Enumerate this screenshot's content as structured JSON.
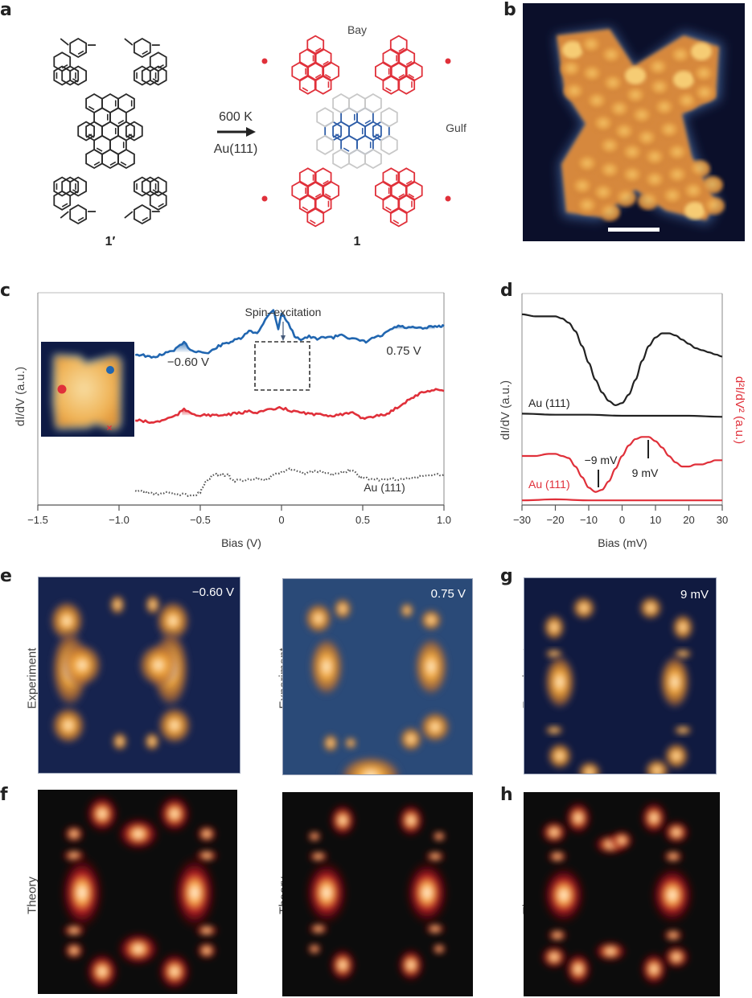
{
  "panel_labels": {
    "a": "a",
    "b": "b",
    "c": "c",
    "d": "d",
    "e": "e",
    "f": "f",
    "g": "g",
    "h": "h"
  },
  "panel_a": {
    "reaction_condition_top": "600 K",
    "reaction_condition_bottom": "Au(111)",
    "precursor_label": "1′",
    "product_label": "1",
    "bay_label": "Bay",
    "gulf_label": "Gulf",
    "colors": {
      "precursor": "#2a2a2a",
      "product_outer": "#e0303a",
      "product_core": "#2f5ea8",
      "bond_new": "#c8c8c8"
    }
  },
  "panel_b": {
    "image": "stm-topography",
    "scale_bar": "scale-bar"
  },
  "panel_e": {
    "row_label": "Experiment",
    "left_bias": "−0.60 V",
    "right_bias": "0.75 V"
  },
  "panel_f": {
    "row_label": "Theory"
  },
  "panel_g": {
    "row_label": "Experiment",
    "bias": "9 mV"
  },
  "panel_h": {
    "row_label": "Theory"
  },
  "chart_data": [
    {
      "type": "line",
      "panel": "c",
      "xlabel": "Bias (V)",
      "ylabel": "dI/dV (a.u.)",
      "xlim": [
        -1.5,
        1.0
      ],
      "xticks": [
        "−1.5",
        "−1.0",
        "−0.5",
        "0",
        "0.5",
        "1.0"
      ],
      "xtick_values": [
        -1.5,
        -1.0,
        -0.5,
        0,
        0.5,
        1.0
      ],
      "annotations": {
        "spin": "Spin–excitation",
        "peak_neg": "−0.60 V",
        "peak_pos": "0.75 V",
        "au": "Au (111)"
      },
      "series": [
        {
          "name": "blue-site",
          "color": "#2166b0",
          "x": [
            -0.9,
            -0.85,
            -0.8,
            -0.75,
            -0.7,
            -0.65,
            -0.6,
            -0.55,
            -0.5,
            -0.45,
            -0.4,
            -0.35,
            -0.3,
            -0.25,
            -0.2,
            -0.15,
            -0.1,
            -0.05,
            -0.02,
            0,
            0.03,
            0.08,
            0.12,
            0.17,
            0.22,
            0.27,
            0.32,
            0.37,
            0.42,
            0.47,
            0.52,
            0.57,
            0.62,
            0.67,
            0.72,
            0.77,
            0.82,
            0.87,
            0.92,
            0.97,
            1.0
          ],
          "y": [
            0.54,
            0.53,
            0.5,
            0.53,
            0.56,
            0.6,
            0.67,
            0.58,
            0.57,
            0.55,
            0.62,
            0.66,
            0.69,
            0.72,
            0.8,
            0.78,
            0.93,
            1.05,
            0.83,
            1.0,
            0.93,
            0.75,
            0.71,
            0.74,
            0.71,
            0.74,
            0.73,
            0.77,
            0.72,
            0.7,
            0.68,
            0.73,
            0.75,
            0.82,
            0.86,
            0.84,
            0.84,
            0.83,
            0.85,
            0.86,
            0.86
          ]
        },
        {
          "name": "red-site",
          "color": "#e0303a",
          "x": [
            -0.9,
            -0.85,
            -0.8,
            -0.75,
            -0.7,
            -0.65,
            -0.6,
            -0.55,
            -0.5,
            -0.45,
            -0.4,
            -0.35,
            -0.3,
            -0.25,
            -0.2,
            -0.15,
            -0.1,
            -0.05,
            0,
            0.05,
            0.1,
            0.15,
            0.2,
            0.25,
            0.3,
            0.35,
            0.4,
            0.45,
            0.5,
            0.55,
            0.6,
            0.65,
            0.7,
            0.75,
            0.8,
            0.85,
            0.9,
            0.95,
            1.0
          ],
          "y": [
            0.25,
            0.24,
            0.22,
            0.24,
            0.27,
            0.3,
            0.37,
            0.33,
            0.3,
            0.31,
            0.3,
            0.31,
            0.32,
            0.33,
            0.35,
            0.34,
            0.36,
            0.37,
            0.39,
            0.36,
            0.34,
            0.33,
            0.31,
            0.32,
            0.3,
            0.31,
            0.32,
            0.33,
            0.27,
            0.29,
            0.3,
            0.32,
            0.38,
            0.44,
            0.5,
            0.55,
            0.58,
            0.6,
            0.58
          ]
        },
        {
          "name": "Au (111)",
          "color": "#555555",
          "dotted": true,
          "x": [
            -0.9,
            -0.85,
            -0.8,
            -0.75,
            -0.7,
            -0.65,
            -0.6,
            -0.55,
            -0.5,
            -0.47,
            -0.43,
            -0.4,
            -0.37,
            -0.33,
            -0.3,
            -0.25,
            -0.2,
            -0.15,
            -0.1,
            -0.05,
            0,
            0.05,
            0.1,
            0.15,
            0.2,
            0.25,
            0.3,
            0.35,
            0.4,
            0.43,
            0.47,
            0.5,
            0.55,
            0.6,
            0.65,
            0.7,
            0.75,
            0.8,
            0.85,
            0.9,
            0.95,
            1.0
          ],
          "y": [
            -0.02,
            -0.03,
            -0.05,
            -0.06,
            -0.04,
            -0.06,
            -0.06,
            -0.08,
            -0.04,
            0.07,
            0.14,
            0.17,
            0.15,
            0.17,
            0.09,
            0.1,
            0.11,
            0.12,
            0.1,
            0.15,
            0.19,
            0.22,
            0.2,
            0.17,
            0.2,
            0.19,
            0.16,
            0.18,
            0.2,
            0.22,
            0.15,
            0.12,
            0.12,
            0.1,
            0.11,
            0.11,
            0.11,
            0.12,
            0.14,
            0.15,
            0.16,
            0.16
          ]
        }
      ]
    },
    {
      "type": "line",
      "panel": "d",
      "xlabel": "Bias (mV)",
      "ylabel": "dI/dV (a.u.)",
      "ylabel_right": "d²I/dV² (a.u.)",
      "xlim": [
        -30,
        30
      ],
      "xticks": [
        "−30",
        "−20",
        "−10",
        "0",
        "10",
        "20",
        "30"
      ],
      "xtick_values": [
        -30,
        -20,
        -10,
        0,
        10,
        20,
        30
      ],
      "annotations": {
        "au_black": "Au (111)",
        "au_red": "Au (111)",
        "neg": "−9 mV",
        "pos": "9 mV"
      },
      "series": [
        {
          "name": "dI/dV",
          "color": "#222222",
          "x": [
            -30,
            -26,
            -22,
            -20,
            -18,
            -16,
            -14,
            -12,
            -10,
            -8,
            -6,
            -4,
            -2,
            0,
            2,
            4,
            6,
            8,
            10,
            12,
            14,
            16,
            18,
            20,
            22,
            24,
            26,
            28,
            30
          ],
          "y": [
            0.94,
            0.93,
            0.93,
            0.93,
            0.92,
            0.9,
            0.86,
            0.79,
            0.71,
            0.63,
            0.57,
            0.53,
            0.51,
            0.52,
            0.56,
            0.63,
            0.72,
            0.79,
            0.83,
            0.85,
            0.85,
            0.84,
            0.82,
            0.8,
            0.78,
            0.77,
            0.76,
            0.75,
            0.74
          ]
        },
        {
          "name": "dI/dV Au (111)",
          "color": "#222222",
          "x": [
            -30,
            -20,
            -10,
            0,
            10,
            20,
            30
          ],
          "y": [
            0.47,
            0.465,
            0.465,
            0.46,
            0.46,
            0.46,
            0.455
          ]
        },
        {
          "name": "d2I/dV2",
          "color": "#e0303a",
          "x": [
            -30,
            -26,
            -22,
            -20,
            -18,
            -16,
            -14,
            -12,
            -10,
            -8,
            -6,
            -4,
            -2,
            0,
            2,
            4,
            6,
            8,
            10,
            12,
            14,
            16,
            18,
            20,
            22,
            24,
            26,
            28,
            30
          ],
          "y": [
            0.27,
            0.27,
            0.28,
            0.28,
            0.27,
            0.26,
            0.22,
            0.17,
            0.12,
            0.1,
            0.11,
            0.15,
            0.21,
            0.27,
            0.32,
            0.35,
            0.36,
            0.36,
            0.34,
            0.31,
            0.27,
            0.24,
            0.22,
            0.22,
            0.23,
            0.23,
            0.24,
            0.25,
            0.25
          ]
        },
        {
          "name": "d2I/dV2 Au (111)",
          "color": "#e0303a",
          "x": [
            -30,
            -20,
            -10,
            0,
            10,
            20,
            30
          ],
          "y": [
            0.06,
            0.065,
            0.06,
            0.06,
            0.06,
            0.06,
            0.06
          ]
        }
      ]
    }
  ]
}
